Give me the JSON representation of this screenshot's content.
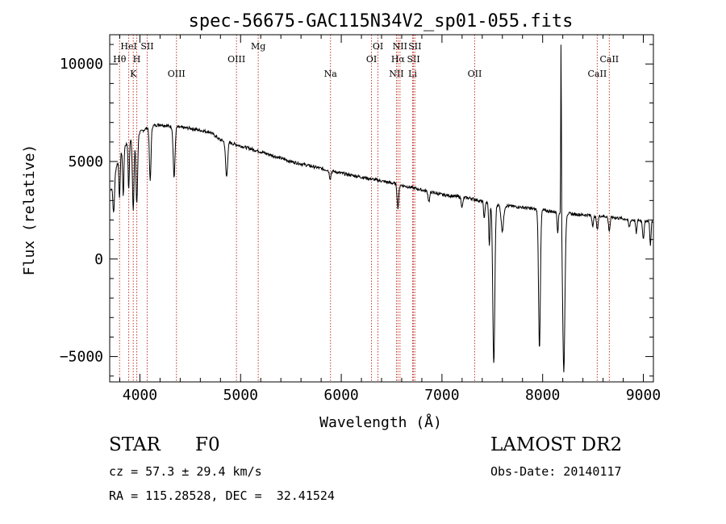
{
  "chart_data": {
    "type": "line",
    "title": "spec-56675-GAC115N34V2_sp01-055.fits",
    "xlabel": "Wavelength (Å)",
    "ylabel": "Flux (relative)",
    "xlim": [
      3700,
      9100
    ],
    "ylim": [
      -6300,
      11500
    ],
    "xticks": [
      4000,
      5000,
      6000,
      7000,
      8000,
      9000
    ],
    "xtick_labels": [
      "4000",
      "5000",
      "6000",
      "7000",
      "8000",
      "9000"
    ],
    "yticks": [
      -5000,
      0,
      5000,
      10000
    ],
    "ytick_labels": [
      "−5000",
      "0",
      "5000",
      "10000"
    ],
    "grid": false,
    "line_color": "#000000",
    "marker_color": "#c0392b",
    "line_markers": [
      {
        "label": "Hθ",
        "wavelength": 3798,
        "row": 1
      },
      {
        "label": "HeI",
        "wavelength": 3889,
        "row": 0
      },
      {
        "label": "K",
        "wavelength": 3934,
        "row": 2
      },
      {
        "label": "H",
        "wavelength": 3969,
        "row": 1
      },
      {
        "label": "SII",
        "wavelength": 4072,
        "row": 0
      },
      {
        "label": "OIII",
        "wavelength": 4363,
        "row": 2
      },
      {
        "label": "OIII",
        "wavelength": 4959,
        "row": 1
      },
      {
        "label": "Mg",
        "wavelength": 5175,
        "row": 0
      },
      {
        "label": "Na",
        "wavelength": 5893,
        "row": 2
      },
      {
        "label": "OI",
        "wavelength": 6300,
        "row": 1
      },
      {
        "label": "OI",
        "wavelength": 6364,
        "row": 0
      },
      {
        "label": "NII",
        "wavelength": 6548,
        "row": 2
      },
      {
        "label": "Hα",
        "wavelength": 6563,
        "row": 1
      },
      {
        "label": "NII",
        "wavelength": 6583,
        "row": 0
      },
      {
        "label": "Li",
        "wavelength": 6708,
        "row": 2
      },
      {
        "label": "SII",
        "wavelength": 6717,
        "row": 1
      },
      {
        "label": "SII",
        "wavelength": 6731,
        "row": 0
      },
      {
        "label": "OII",
        "wavelength": 7325,
        "row": 2
      },
      {
        "label": "CaII",
        "wavelength": 8542,
        "row": 2
      },
      {
        "label": "CaII",
        "wavelength": 8662,
        "row": 1
      }
    ],
    "continuum": [
      [
        3710,
        3500
      ],
      [
        3760,
        4600
      ],
      [
        3800,
        5300
      ],
      [
        3850,
        5800
      ],
      [
        3900,
        6100
      ],
      [
        3950,
        6200
      ],
      [
        4000,
        6500
      ],
      [
        4100,
        6800
      ],
      [
        4200,
        6900
      ],
      [
        4300,
        6800
      ],
      [
        4500,
        6700
      ],
      [
        4700,
        6500
      ],
      [
        4800,
        6100
      ],
      [
        5000,
        5800
      ],
      [
        5200,
        5500
      ],
      [
        5500,
        5000
      ],
      [
        6000,
        4400
      ],
      [
        6500,
        3900
      ],
      [
        7000,
        3300
      ],
      [
        7300,
        3100
      ],
      [
        7500,
        2800
      ],
      [
        7800,
        2650
      ],
      [
        8000,
        2500
      ],
      [
        8300,
        2300
      ],
      [
        8600,
        2200
      ],
      [
        8900,
        2000
      ],
      [
        9100,
        1950
      ]
    ],
    "absorption_features": [
      [
        3740,
        1800,
        8
      ],
      [
        3798,
        2200,
        6
      ],
      [
        3835,
        2400,
        6
      ],
      [
        3889,
        2500,
        6
      ],
      [
        3934,
        3600,
        8
      ],
      [
        3969,
        3500,
        8
      ],
      [
        4102,
        2800,
        8
      ],
      [
        4340,
        2600,
        9
      ],
      [
        4861,
        1800,
        10
      ],
      [
        5890,
        400,
        8
      ],
      [
        6563,
        1200,
        8
      ],
      [
        6870,
        500,
        8
      ],
      [
        7200,
        500,
        8
      ],
      [
        7420,
        900,
        6
      ],
      [
        7470,
        2200,
        6
      ],
      [
        7515,
        8200,
        10
      ],
      [
        7600,
        1300,
        12
      ],
      [
        7968,
        7100,
        9
      ],
      [
        8150,
        1000,
        6
      ],
      [
        8210,
        8100,
        11
      ],
      [
        8498,
        500,
        8
      ],
      [
        8542,
        700,
        8
      ],
      [
        8662,
        700,
        8
      ],
      [
        8860,
        400,
        8
      ],
      [
        8930,
        700,
        6
      ],
      [
        9000,
        900,
        8
      ],
      [
        9070,
        1300,
        6
      ]
    ],
    "emission_spikes": [
      [
        8183,
        11500,
        3
      ]
    ],
    "noise_amplitude": 80
  },
  "info": {
    "object_class": "STAR",
    "subclass": "F0",
    "survey": "LAMOST DR2",
    "cz": "cz = 57.3 ± 29.4 km/s",
    "obs_date": "Obs-Date: 20140117",
    "coords": "RA = 115.28528, DEC =  32.41524"
  }
}
